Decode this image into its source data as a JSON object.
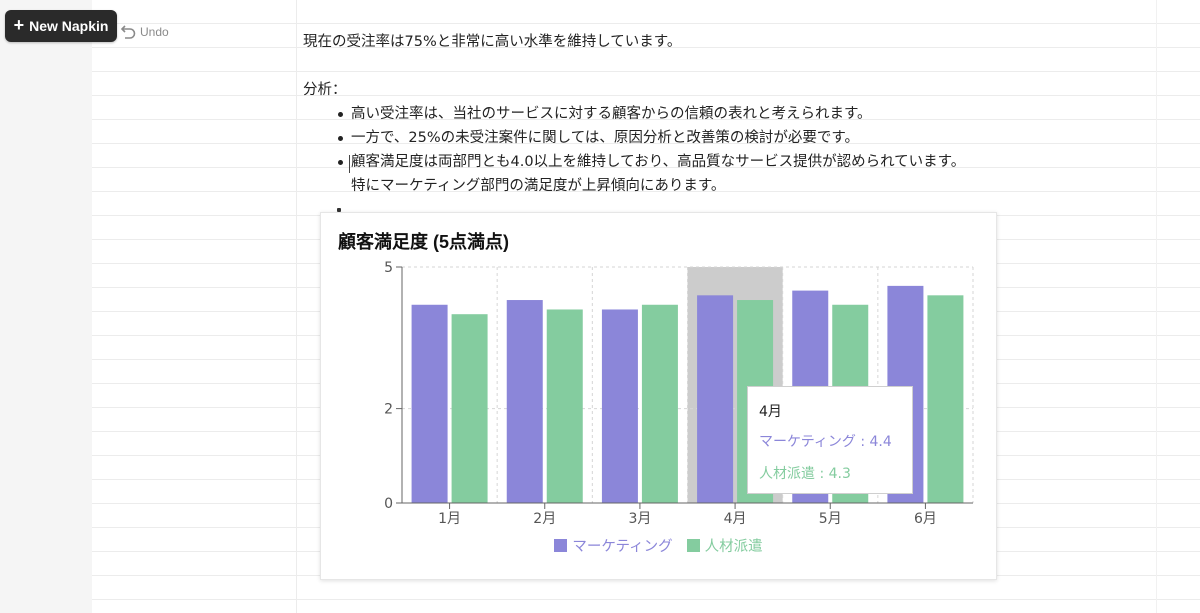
{
  "toolbar": {
    "new_napkin_label": "New Napkin",
    "undo_label": "Undo"
  },
  "document": {
    "intro": "現在の受注率は75%と非常に高い水準を維持しています。",
    "analysis_heading": "分析：",
    "bullets": [
      "高い受注率は、当社のサービスに対する顧客からの信頼の表れと考えられます。",
      "一方で、25%の未受注案件に関しては、原因分析と改善策の検討が必要です。",
      "顧客満足度は両部門とも4.0以上を維持しており、高品質なサービス提供が認められています。特にマーケティング部門の満足度が上昇傾向にあります。"
    ]
  },
  "colors": {
    "marketing": "#8b86d9",
    "staffing": "#84cc9f",
    "highlight": "#cccccc"
  },
  "chart_data": {
    "type": "bar",
    "title": "顧客満足度 (5点満点)",
    "categories": [
      "1月",
      "2月",
      "3月",
      "4月",
      "5月",
      "6月"
    ],
    "series": [
      {
        "name": "マーケティング",
        "values": [
          4.2,
          4.3,
          4.1,
          4.4,
          4.5,
          4.6
        ]
      },
      {
        "name": "人材派遣",
        "values": [
          4.0,
          4.1,
          4.2,
          4.3,
          4.2,
          4.4
        ]
      }
    ],
    "yticks": [
      0,
      2,
      5
    ],
    "ylim": [
      0,
      5
    ],
    "grid": true,
    "legend_position": "bottom",
    "highlighted_category": "4月",
    "tooltip": {
      "title": "4月",
      "rows": [
        "マーケティング : 4.4",
        "人材派遣 : 4.3"
      ]
    }
  }
}
